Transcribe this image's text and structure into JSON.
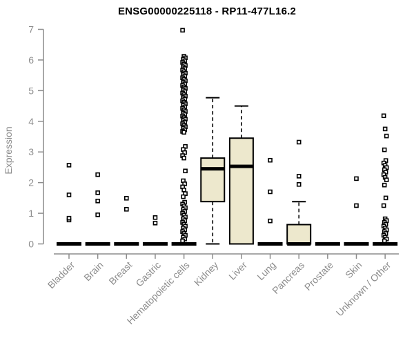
{
  "chart_data": {
    "type": "boxplot",
    "title": "ENSG00000225118 - RP11-477L16.2",
    "ylabel": "Expression",
    "ylim": [
      0,
      7
    ],
    "yticks": [
      0,
      1,
      2,
      3,
      4,
      5,
      6,
      7
    ],
    "grid": false,
    "legend": false,
    "colors": {
      "box_fill": "#EDE8CD",
      "axis": "#8C8C8C",
      "tick_text": "#8C8C8C",
      "data": "#000000",
      "title_text": "#000000",
      "background": "#FFFFFF"
    },
    "categories": [
      "Bladder",
      "Brain",
      "Breast",
      "Gastric",
      "Hematopoietic cells",
      "Kidney",
      "Liver",
      "Lung",
      "Pancreas",
      "Prostate",
      "Skin",
      "Unknown / Other"
    ],
    "boxes": [
      {
        "category": "Bladder",
        "q1": 0,
        "median": 0,
        "q3": 0,
        "whisker_low": 0,
        "whisker_high": 0,
        "outliers": [
          0.78,
          0.84,
          1.6,
          2.57
        ]
      },
      {
        "category": "Brain",
        "q1": 0,
        "median": 0,
        "q3": 0,
        "whisker_low": 0,
        "whisker_high": 0,
        "outliers": [
          0.95,
          1.4,
          1.67,
          2.26
        ]
      },
      {
        "category": "Breast",
        "q1": 0,
        "median": 0,
        "q3": 0,
        "whisker_low": 0,
        "whisker_high": 0,
        "outliers": [
          1.13,
          1.49
        ]
      },
      {
        "category": "Gastric",
        "q1": 0,
        "median": 0,
        "q3": 0,
        "whisker_low": 0,
        "whisker_high": 0,
        "outliers": [
          0.68,
          0.86
        ]
      },
      {
        "category": "Hematopoietic cells",
        "q1": 0,
        "median": 0,
        "q3": 0,
        "whisker_low": 0,
        "whisker_high": 0,
        "outliers": [
          6.97,
          6.12,
          6.07,
          6.02,
          5.97,
          5.92,
          5.87,
          5.82,
          5.77,
          5.72,
          5.67,
          5.62,
          5.57,
          5.52,
          5.47,
          5.42,
          5.37,
          5.32,
          5.27,
          5.22,
          5.17,
          5.12,
          5.07,
          5.02,
          4.97,
          4.92,
          4.87,
          4.82,
          4.77,
          4.72,
          4.67,
          4.62,
          4.57,
          4.52,
          4.47,
          4.42,
          4.37,
          4.32,
          4.27,
          4.22,
          4.17,
          4.12,
          4.07,
          4.02,
          3.97,
          3.92,
          3.87,
          3.82,
          3.77,
          3.72,
          3.67,
          3.64,
          3.18,
          3.08,
          2.98,
          2.88,
          2.8,
          2.38,
          2.06,
          1.96,
          1.86,
          1.76,
          1.64,
          1.54,
          1.36,
          1.3,
          1.24,
          1.18,
          1.12,
          1.06,
          1.0,
          0.94,
          0.88,
          0.82,
          0.76,
          0.7,
          0.64,
          0.58,
          0.52,
          0.46,
          0.4,
          0.34,
          0.28,
          0.22,
          0.16,
          0.1
        ]
      },
      {
        "category": "Kidney",
        "q1": 1.38,
        "median": 2.45,
        "q3": 2.8,
        "whisker_low": 0,
        "whisker_high": 4.77,
        "outliers": []
      },
      {
        "category": "Liver",
        "q1": 0,
        "median": 2.53,
        "q3": 3.45,
        "whisker_low": 0,
        "whisker_high": 4.5,
        "outliers": []
      },
      {
        "category": "Lung",
        "q1": 0,
        "median": 0,
        "q3": 0,
        "whisker_low": 0,
        "whisker_high": 0,
        "outliers": [
          0.75,
          1.7,
          2.73
        ]
      },
      {
        "category": "Pancreas",
        "q1": 0,
        "median": 0,
        "q3": 0.63,
        "whisker_low": 0,
        "whisker_high": 1.38,
        "outliers": [
          1.94,
          2.21,
          3.32
        ]
      },
      {
        "category": "Prostate",
        "q1": 0,
        "median": 0,
        "q3": 0,
        "whisker_low": 0,
        "whisker_high": 0,
        "outliers": []
      },
      {
        "category": "Skin",
        "q1": 0,
        "median": 0,
        "q3": 0,
        "whisker_low": 0,
        "whisker_high": 0,
        "outliers": [
          1.25,
          2.13
        ]
      },
      {
        "category": "Unknown / Other",
        "q1": 0,
        "median": 0,
        "q3": 0,
        "whisker_low": 0,
        "whisker_high": 0,
        "outliers": [
          4.18,
          3.75,
          3.52,
          3.07,
          2.72,
          2.64,
          2.56,
          2.49,
          2.42,
          2.34,
          2.26,
          2.17,
          2.09,
          1.92,
          1.5,
          1.25,
          0.82,
          0.76,
          0.7,
          0.64,
          0.58,
          0.52,
          0.46,
          0.4,
          0.34,
          0.28,
          0.22,
          0.16,
          0.1
        ]
      }
    ]
  }
}
